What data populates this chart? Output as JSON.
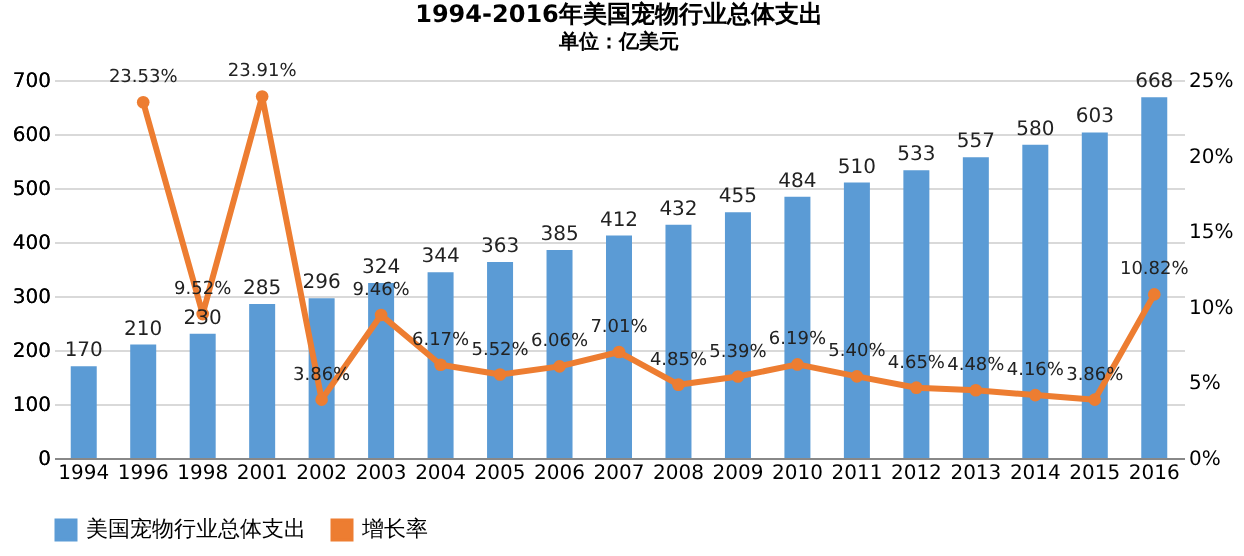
{
  "chart_data": {
    "type": "bar",
    "title": "1994-2016年美国宠物行业总体支出",
    "annotations": [
      "单位：亿美元"
    ],
    "categories": [
      "1994",
      "1996",
      "1998",
      "2001",
      "2002",
      "2003",
      "2004",
      "2005",
      "2006",
      "2007",
      "2008",
      "2009",
      "2010",
      "2011",
      "2012",
      "2013",
      "2014",
      "2015",
      "2016"
    ],
    "series": [
      {
        "name": "美国宠物行业总体支出",
        "color": "#5b9bd5",
        "values": [
          170,
          210,
          230,
          285,
          296,
          324,
          344,
          363,
          385,
          412,
          432,
          455,
          484,
          510,
          533,
          557,
          580,
          603,
          668
        ],
        "value_labels": [
          "170",
          "210",
          "230",
          "285",
          "296",
          "324",
          "344",
          "363",
          "385",
          "412",
          "432",
          "455",
          "484",
          "510",
          "533",
          "557",
          "580",
          "603",
          "668"
        ]
      },
      {
        "name": "增长率",
        "type": "line",
        "axis": "y2",
        "color": "#ed7d31",
        "marker": "circle",
        "line_style": "solid",
        "values": [
          null,
          23.53,
          9.52,
          23.91,
          3.86,
          9.46,
          6.17,
          5.52,
          6.06,
          7.01,
          4.85,
          5.39,
          6.19,
          5.4,
          4.65,
          4.48,
          4.16,
          3.86,
          10.82
        ],
        "value_labels": [
          null,
          "23.53%",
          "9.52%",
          "23.91%",
          "3.86%",
          "9.46%",
          "6.17%",
          "5.52%",
          "6.06%",
          "7.01%",
          "4.85%",
          "5.39%",
          "6.19%",
          "5.40%",
          "4.65%",
          "4.48%",
          "4.16%",
          "3.86%",
          "10.82%"
        ]
      }
    ],
    "ylim": [
      0,
      700
    ],
    "yticks": [
      0,
      100,
      200,
      300,
      400,
      500,
      600,
      700
    ],
    "y2lim": [
      0,
      25
    ],
    "y2ticks": [
      {
        "value": 0,
        "label": "0%"
      },
      {
        "value": 5,
        "label": "5%"
      },
      {
        "value": 10,
        "label": "10%"
      },
      {
        "value": 15,
        "label": "15%"
      },
      {
        "value": 20,
        "label": "20%"
      },
      {
        "value": 25,
        "label": "25%"
      }
    ],
    "grid": "y",
    "legend": "bottom"
  }
}
